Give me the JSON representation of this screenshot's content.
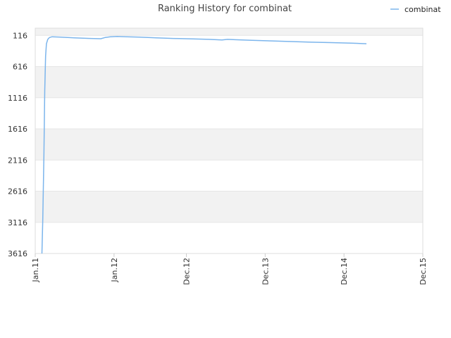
{
  "chart_data": {
    "type": "line",
    "title": "Ranking History for combinat",
    "legend_position": "top-right",
    "grid": true,
    "y_reversed": true,
    "ylim": [
      3616,
      0
    ],
    "xlim": [
      "Jan.11",
      "Dec.15"
    ],
    "y_ticks": [
      "116",
      "616",
      "1116",
      "1616",
      "2116",
      "2616",
      "3116",
      "3616"
    ],
    "x_ticks": [
      "Jan.11",
      "Jan.12",
      "Dec.12",
      "Dec.13",
      "Dec.14",
      "Dec.15"
    ],
    "series": [
      {
        "name": "combinat",
        "color": "#7cb5ec",
        "points": [
          [
            "2011-02-01",
            3616
          ],
          [
            "2011-02-05",
            3070
          ],
          [
            "2011-02-10",
            2050
          ],
          [
            "2011-02-14",
            1000
          ],
          [
            "2011-02-18",
            450
          ],
          [
            "2011-02-22",
            250
          ],
          [
            "2011-02-28",
            180
          ],
          [
            "2011-03-08",
            150
          ],
          [
            "2011-03-20",
            138
          ],
          [
            "2011-05-01",
            145
          ],
          [
            "2011-07-01",
            155
          ],
          [
            "2011-09-15",
            165
          ],
          [
            "2011-11-01",
            170
          ],
          [
            "2011-11-20",
            150
          ],
          [
            "2011-12-15",
            138
          ],
          [
            "2012-01-15",
            132
          ],
          [
            "2012-03-01",
            138
          ],
          [
            "2012-05-01",
            145
          ],
          [
            "2012-07-15",
            155
          ],
          [
            "2012-10-01",
            165
          ],
          [
            "2013-01-01",
            172
          ],
          [
            "2013-03-15",
            180
          ],
          [
            "2013-05-15",
            190
          ],
          [
            "2013-06-10",
            180
          ],
          [
            "2013-07-15",
            185
          ],
          [
            "2013-10-01",
            195
          ],
          [
            "2014-01-01",
            205
          ],
          [
            "2014-04-01",
            215
          ],
          [
            "2014-07-01",
            225
          ],
          [
            "2014-10-01",
            232
          ],
          [
            "2015-01-01",
            240
          ],
          [
            "2015-03-15",
            250
          ]
        ]
      }
    ]
  }
}
